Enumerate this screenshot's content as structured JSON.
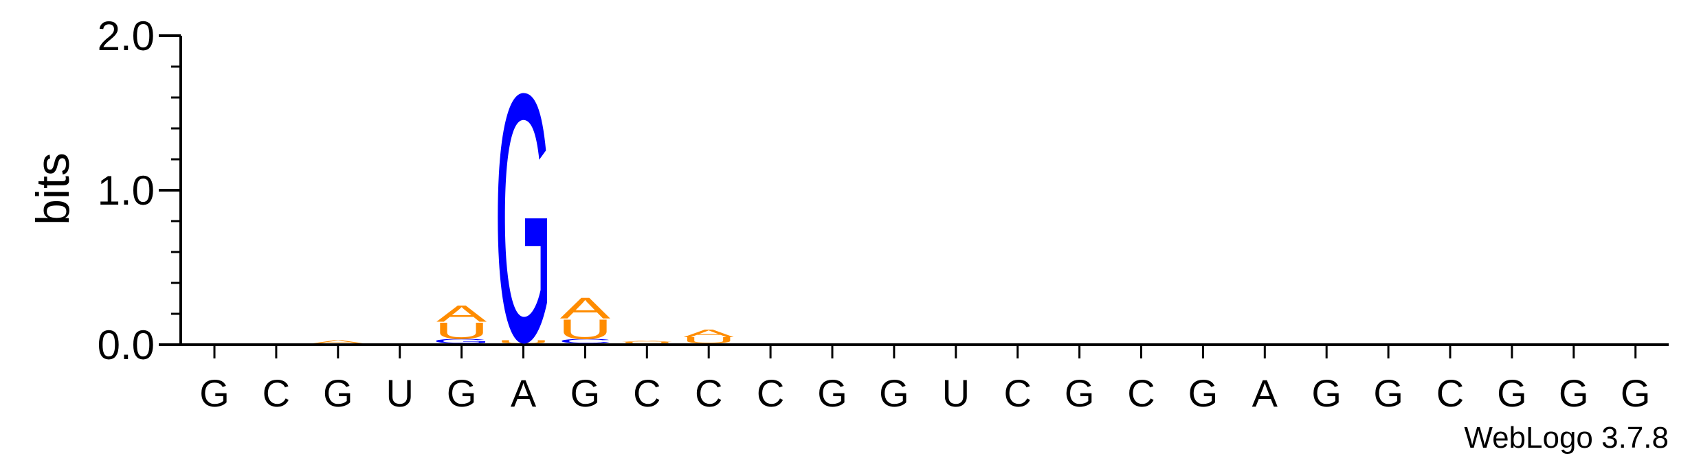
{
  "chart_data": {
    "type": "sequence-logo",
    "ylabel": "bits",
    "ylim": [
      0,
      2.0
    ],
    "y_ticks": [
      {
        "value": 0.0,
        "label": "0.0"
      },
      {
        "value": 1.0,
        "label": "1.0"
      },
      {
        "value": 2.0,
        "label": "2.0"
      }
    ],
    "y_minor_step": 0.2,
    "x_labels": [
      "G",
      "C",
      "G",
      "U",
      "G",
      "A",
      "G",
      "C",
      "C",
      "C",
      "G",
      "G",
      "U",
      "C",
      "G",
      "C",
      "G",
      "A",
      "G",
      "G",
      "C",
      "G",
      "G",
      "G"
    ],
    "letter_colors": {
      "A": "#ff8c00",
      "U": "#ff8c00",
      "G": "#0000ff",
      "C": "#0000ff"
    },
    "stacks": [
      {
        "position": 1,
        "letters": []
      },
      {
        "position": 2,
        "letters": []
      },
      {
        "position": 3,
        "letters": [
          {
            "letter": "A",
            "bits": 0.02
          }
        ]
      },
      {
        "position": 4,
        "letters": []
      },
      {
        "position": 5,
        "letters": [
          {
            "letter": "G",
            "bits": 0.03
          },
          {
            "letter": "U",
            "bits": 0.11
          },
          {
            "letter": "A",
            "bits": 0.11
          }
        ]
      },
      {
        "position": 6,
        "letters": [
          {
            "letter": "U",
            "bits": 0.02
          },
          {
            "letter": "G",
            "bits": 1.65
          }
        ]
      },
      {
        "position": 7,
        "letters": [
          {
            "letter": "C",
            "bits": 0.03
          },
          {
            "letter": "U",
            "bits": 0.13
          },
          {
            "letter": "A",
            "bits": 0.14
          }
        ]
      },
      {
        "position": 8,
        "letters": [
          {
            "letter": "U",
            "bits": 0.01
          },
          {
            "letter": "A",
            "bits": 0.01
          }
        ]
      },
      {
        "position": 9,
        "letters": [
          {
            "letter": "U",
            "bits": 0.04
          },
          {
            "letter": "A",
            "bits": 0.05
          }
        ]
      },
      {
        "position": 10,
        "letters": []
      },
      {
        "position": 11,
        "letters": []
      },
      {
        "position": 12,
        "letters": []
      },
      {
        "position": 13,
        "letters": []
      },
      {
        "position": 14,
        "letters": []
      },
      {
        "position": 15,
        "letters": []
      },
      {
        "position": 16,
        "letters": []
      },
      {
        "position": 17,
        "letters": []
      },
      {
        "position": 18,
        "letters": []
      },
      {
        "position": 19,
        "letters": []
      },
      {
        "position": 20,
        "letters": []
      },
      {
        "position": 21,
        "letters": []
      },
      {
        "position": 22,
        "letters": []
      },
      {
        "position": 23,
        "letters": []
      },
      {
        "position": 24,
        "letters": []
      }
    ]
  },
  "credit": "WebLogo 3.7.8"
}
